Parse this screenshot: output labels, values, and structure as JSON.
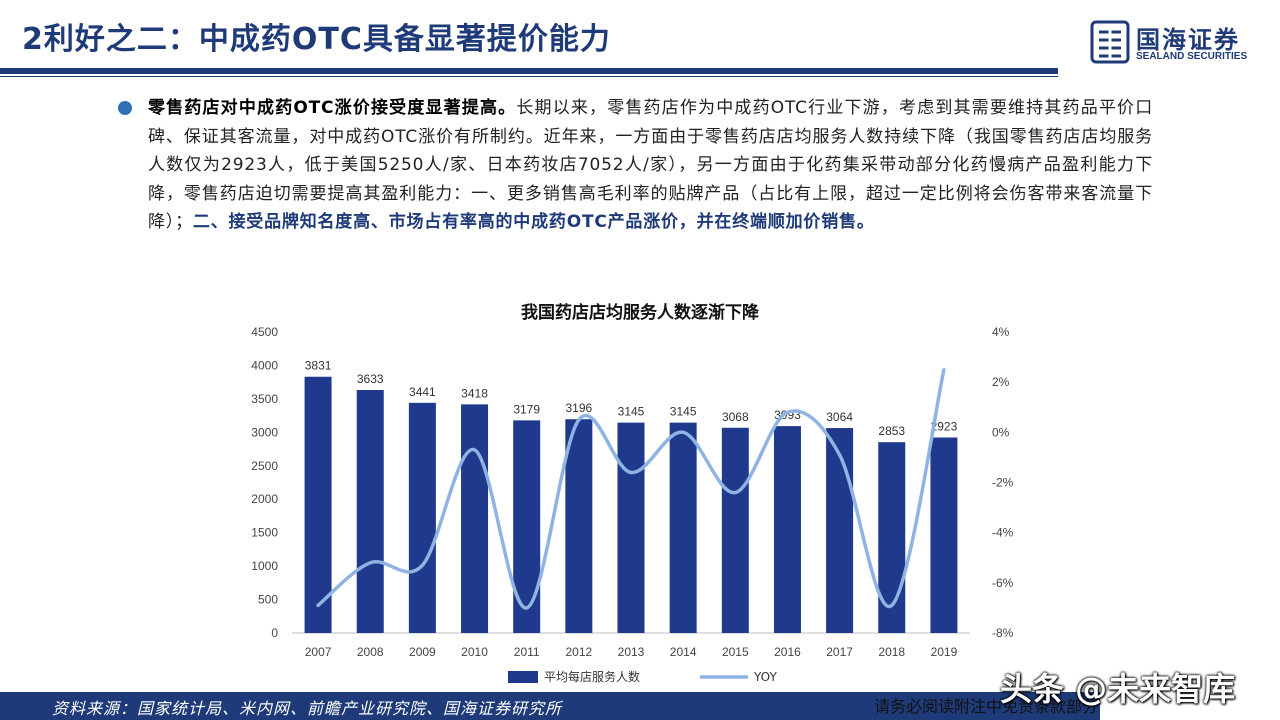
{
  "header": {
    "title": "2利好之二：中成药OTC具备显著提价能力",
    "logo_cn": "国海证券",
    "logo_en": "SEALAND SECURITIES"
  },
  "body": {
    "lead_bold": "零售药店对中成药OTC涨价接受度显著提高。",
    "text": "长期以来，零售药店作为中成药OTC行业下游，考虑到其需要维持其药品平价口碑、保证其客流量，对中成药OTC涨价有所制约。近年来，一方面由于零售药店店均服务人数持续下降（我国零售药店店均服务人数仅为2923人，低于美国5250人/家、日本药妆店7052人/家），另一方面由于化药集采带动部分化药慢病产品盈利能力下降，零售药店迫切需要提高其盈利能力：一、更多销售高毛利率的贴牌产品（占比有上限，超过一定比例将会伤客带来客流量下降）；",
    "highlight": "二、接受品牌知名度高、市场占有率高的中成药OTC产品涨价，并在终端顺加价销售。"
  },
  "chart_data": {
    "type": "bar",
    "title": "我国药店店均服务人数逐渐下降",
    "categories": [
      "2007",
      "2008",
      "2009",
      "2010",
      "2011",
      "2012",
      "2013",
      "2014",
      "2015",
      "2016",
      "2017",
      "2018",
      "2019"
    ],
    "series": [
      {
        "name": "平均每店服务人数",
        "type": "bar",
        "axis": "left",
        "values": [
          3831,
          3633,
          3441,
          3418,
          3179,
          3196,
          3145,
          3145,
          3068,
          3093,
          3064,
          2853,
          2923
        ]
      },
      {
        "name": "YOY",
        "type": "line",
        "axis": "right",
        "smooth": true,
        "values": [
          -6.9,
          -5.2,
          -5.3,
          -0.7,
          -7.0,
          0.5,
          -1.6,
          0.0,
          -2.4,
          0.8,
          -0.9,
          -6.9,
          2.5
        ]
      }
    ],
    "ylim_left": [
      0,
      4500
    ],
    "yticks_left": [
      0,
      500,
      1000,
      1500,
      2000,
      2500,
      3000,
      3500,
      4000,
      4500
    ],
    "ylim_right": [
      -8,
      4
    ],
    "yticks_right": [
      "4%",
      "2%",
      "0%",
      "-2%",
      "-4%",
      "-6%",
      "-8%"
    ],
    "bar_color": "#1f3a8c",
    "line_color": "#8fb3e3",
    "legend_position": "bottom",
    "grid": false
  },
  "footer": {
    "source": "资料来源：国家统计局、米内网、前瞻产业研究院、国海证券研究所",
    "disclaimer": "请务必阅读附注中免责条款部分",
    "watermark": "头条 @未来智库"
  }
}
